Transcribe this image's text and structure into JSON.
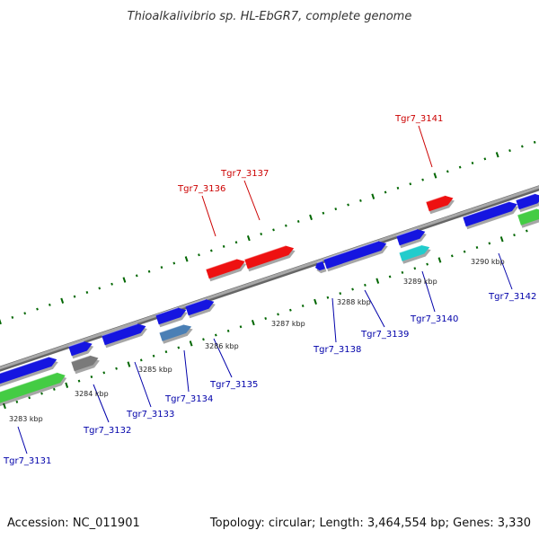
{
  "title": "Thioalkalivibrio sp. HL-EbGR7, complete genome",
  "footer": {
    "accession": "Accession: NC_011901",
    "summary": "Topology: circular; Length: 3,464,554 bp; Genes: 3,330"
  },
  "colors": {
    "backbone": "#8a8a8a",
    "outer_ticks": "#006600",
    "inner_ticks": "#006600",
    "label_forward": "#cc0000",
    "label_reverse": "#0000aa",
    "gene_blue": "#1515e0",
    "gene_red": "#ee1111",
    "gene_green": "#44cc44",
    "gene_gray": "#7a7a7a",
    "gene_cyan": "#22cccc",
    "gene_steel": "#4a7fb5"
  },
  "scale_labels": [
    "3283 kbp",
    "3284 kbp",
    "3285 kbp",
    "3286 kbp",
    "3287 kbp",
    "3288 kbp",
    "3289 kbp",
    "3290 kbp"
  ],
  "genes_forward_labeled": [
    "Tgr7_3136",
    "Tgr7_3137",
    "Tgr7_3141"
  ],
  "genes_reverse_labeled": [
    "Tgr7_3131",
    "Tgr7_3132",
    "Tgr7_3133",
    "Tgr7_3134",
    "Tgr7_3135",
    "Tgr7_3138",
    "Tgr7_3139",
    "Tgr7_3140",
    "Tgr7_3142"
  ]
}
